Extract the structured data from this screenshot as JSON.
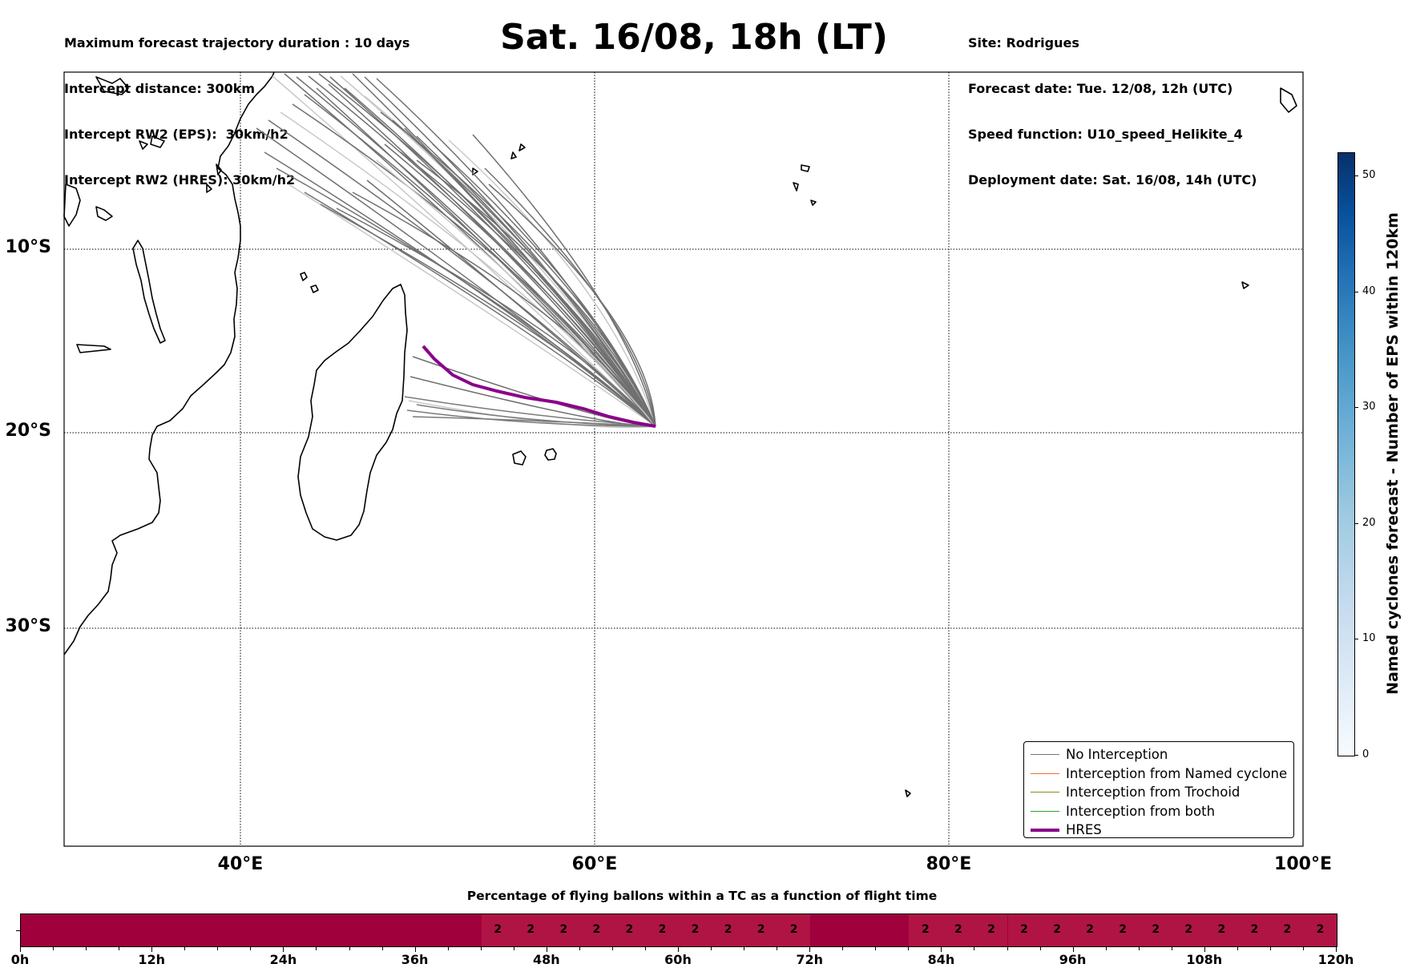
{
  "header_left": [
    "Maximum forecast trajectory duration : 10 days",
    "Intercept distance: 300km",
    "Intercept RW2 (EPS):  30km/h2",
    "Intercept RW2 (HRES): 30km/h2"
  ],
  "title": "Sat. 16/08, 18h (LT)",
  "header_right": [
    "Site: Rodrigues",
    "Forecast date: Tue. 12/08, 12h (UTC)",
    "Speed function: U10_speed_Helikite_4",
    "Deployment date: Sat. 16/08, 14h (UTC)"
  ],
  "map": {
    "lat_labels": [
      "10°S",
      "20°S",
      "30°S"
    ],
    "lon_labels": [
      "40°E",
      "60°E",
      "80°E",
      "100°E"
    ],
    "lon_range": [
      30,
      100
    ],
    "lat_range": [
      -43,
      0
    ]
  },
  "legend": {
    "placement": "lower-right",
    "items": [
      {
        "label": "No Interception",
        "color": "#777777"
      },
      {
        "label": "Interception from Named cyclone",
        "color": "#e8743b"
      },
      {
        "label": "Interception from Trochoid",
        "color": "#8a8a1e"
      },
      {
        "label": "Interception from both",
        "color": "#2ca02c"
      },
      {
        "label": "HRES",
        "color": "#8b008b"
      }
    ]
  },
  "colorbar": {
    "label": "Named cyclones forecast - Number of EPS within 120km",
    "ticks": [
      "0",
      "10",
      "20",
      "30",
      "40",
      "50"
    ],
    "range": [
      0,
      52
    ]
  },
  "strip": {
    "title": "Percentage of flying ballons within a TC as a function of flight time",
    "time_labels": [
      "0h",
      "12h",
      "24h",
      "36h",
      "48h",
      "60h",
      "72h",
      "84h",
      "96h",
      "108h",
      "120h"
    ],
    "max_hours": 120,
    "base_color": "#a0003c",
    "highlight_color": "#b01444",
    "value_cells": [
      {
        "hour": 45,
        "value": "2"
      },
      {
        "hour": 48,
        "value": "2"
      },
      {
        "hour": 51,
        "value": "2"
      },
      {
        "hour": 54,
        "value": "2"
      },
      {
        "hour": 57,
        "value": "2"
      },
      {
        "hour": 60,
        "value": "2"
      },
      {
        "hour": 63,
        "value": "2"
      },
      {
        "hour": 66,
        "value": "2"
      },
      {
        "hour": 69,
        "value": "2"
      },
      {
        "hour": 72,
        "value": "2"
      },
      {
        "hour": 84,
        "value": "2"
      },
      {
        "hour": 87,
        "value": "2"
      },
      {
        "hour": 90,
        "value": "2"
      },
      {
        "hour": 93,
        "value": "2"
      },
      {
        "hour": 96,
        "value": "2"
      },
      {
        "hour": 99,
        "value": "2"
      },
      {
        "hour": 102,
        "value": "2"
      },
      {
        "hour": 105,
        "value": "2"
      },
      {
        "hour": 108,
        "value": "2"
      },
      {
        "hour": 111,
        "value": "2"
      },
      {
        "hour": 114,
        "value": "2"
      },
      {
        "hour": 117,
        "value": "2"
      },
      {
        "hour": 120,
        "value": "2"
      }
    ]
  }
}
